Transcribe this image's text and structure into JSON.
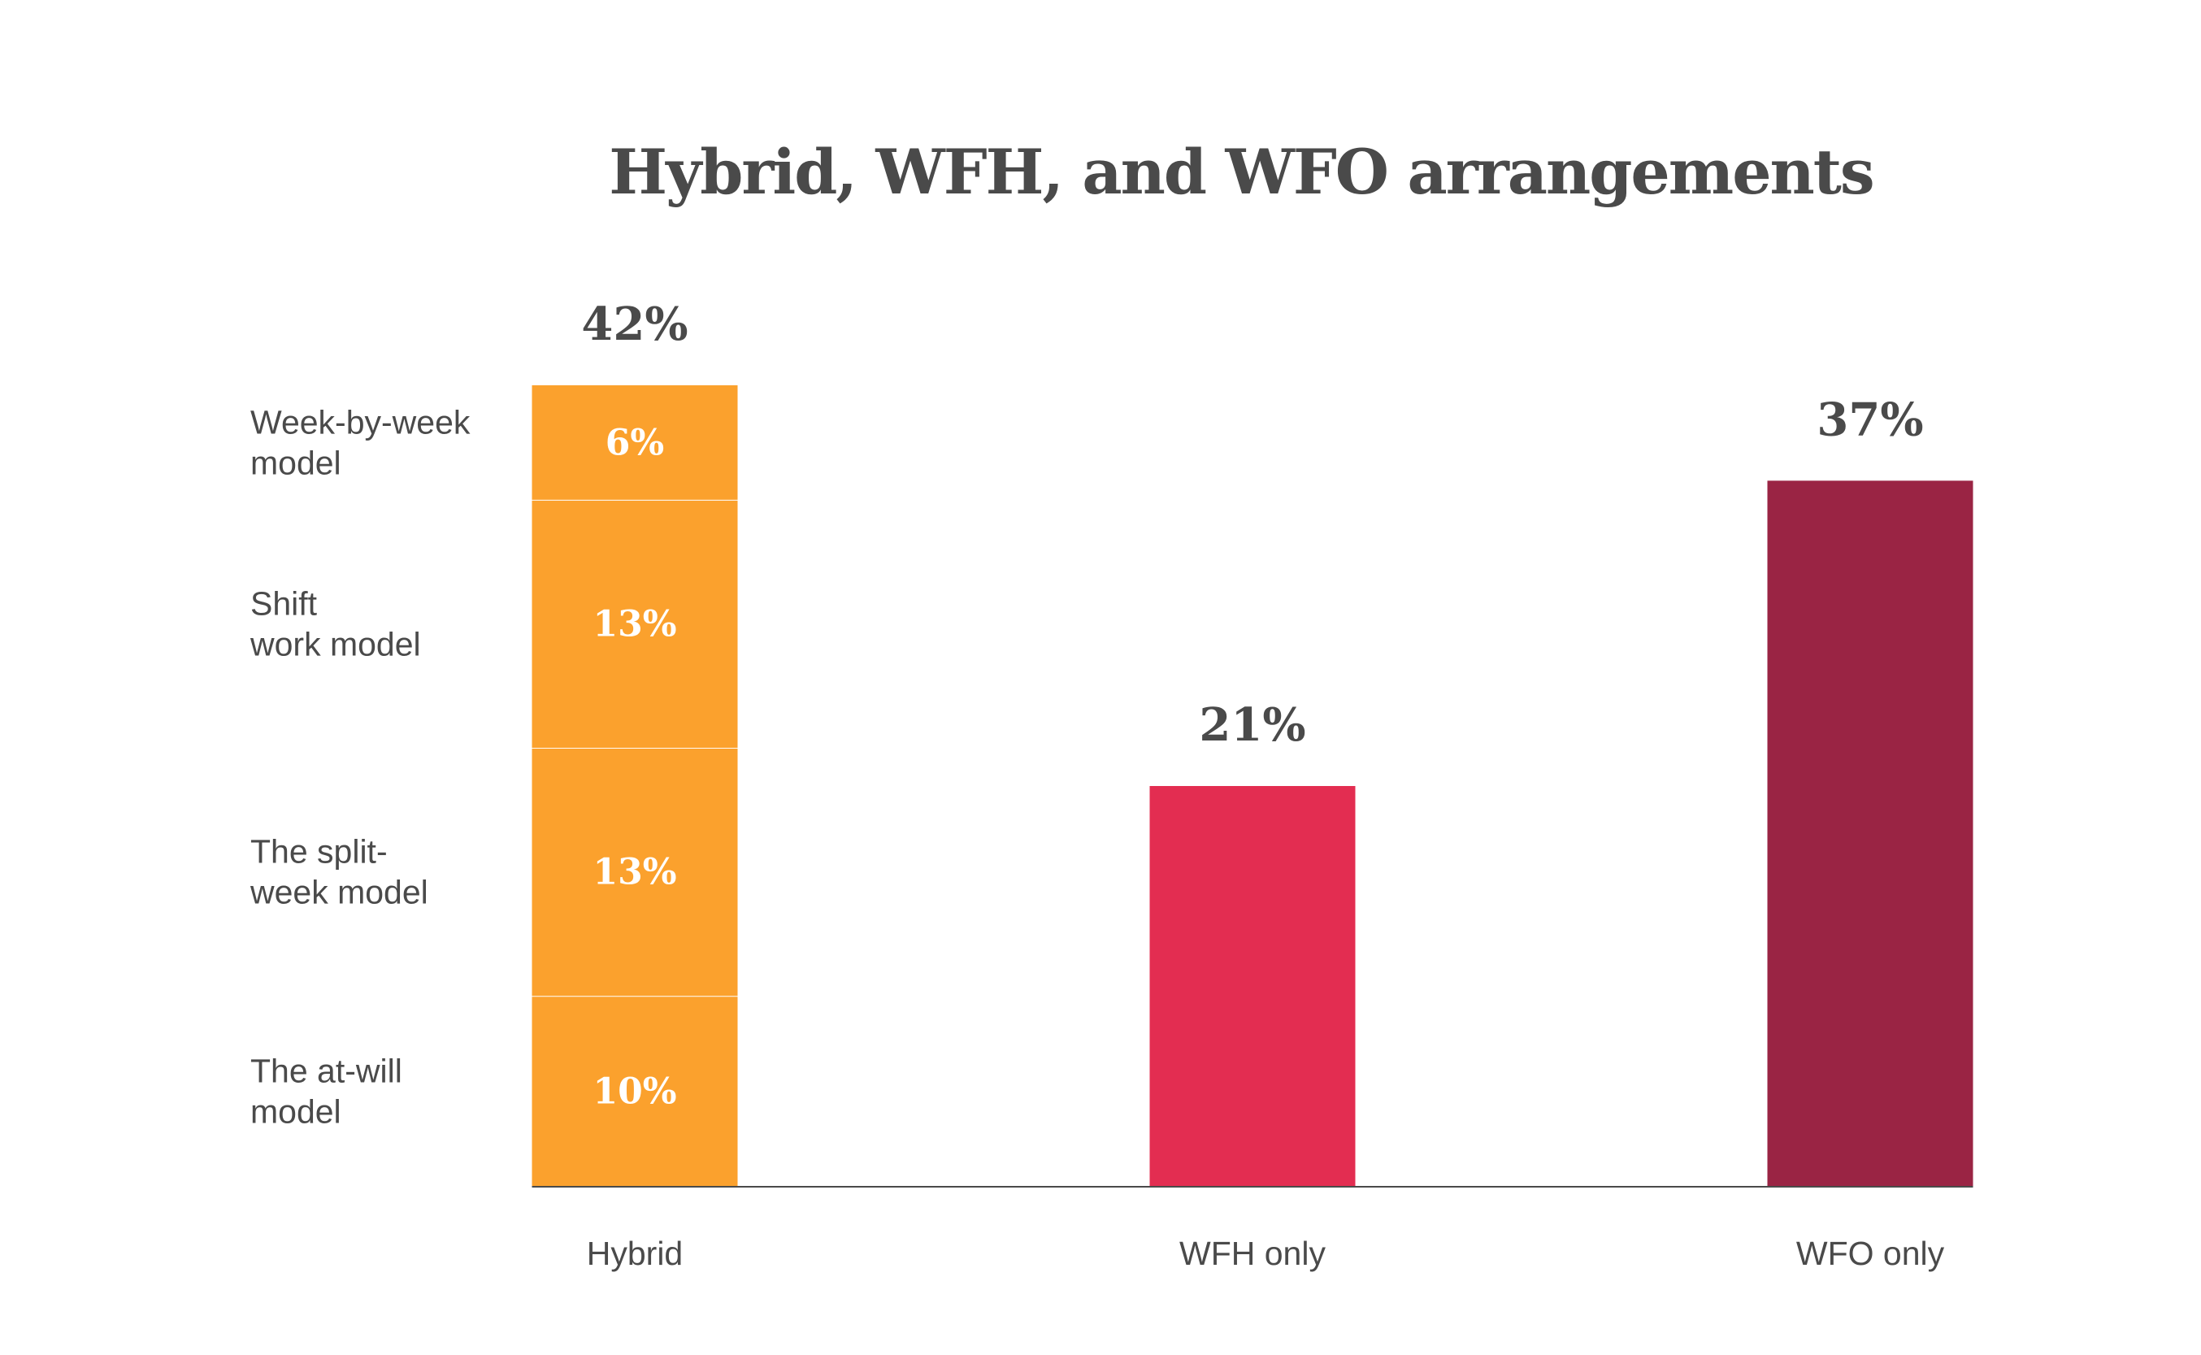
{
  "chart_data": {
    "type": "bar",
    "title": "Hybrid, WFH, and WFO arrangements",
    "categories": [
      "Hybrid",
      "WFH only",
      "WFO only"
    ],
    "totals": [
      "42%",
      "21%",
      "37%"
    ],
    "values": [
      42,
      21,
      37
    ],
    "colors": [
      "#fba12d",
      "#e32d51",
      "#9a2444"
    ],
    "segment_line_color": "#ffffff",
    "axis_color": "#4a4a4a",
    "hybrid_breakdown": [
      {
        "name": "The at-will model",
        "name_lines": [
          "The at-will",
          "model"
        ],
        "value": 10,
        "label": "10%"
      },
      {
        "name": "The split-week model",
        "name_lines": [
          "The split-",
          "week model"
        ],
        "value": 13,
        "label": "13%"
      },
      {
        "name": "Shift work model",
        "name_lines": [
          "Shift",
          "work model"
        ],
        "value": 13,
        "label": "13%"
      },
      {
        "name": "Week-by-week model",
        "name_lines": [
          "Week-by-week",
          "model"
        ],
        "value": 6,
        "label": "6%"
      }
    ],
    "xlabel": "",
    "ylabel": "",
    "ylim": [
      0,
      42
    ],
    "grid": false,
    "legend": "none"
  }
}
